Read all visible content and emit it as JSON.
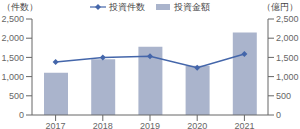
{
  "chart_data": {
    "type": "bar",
    "categories": [
      "2017",
      "2018",
      "2019",
      "2020",
      "2021"
    ],
    "series": [
      {
        "name": "投資件数",
        "type": "line",
        "color": "#4466aa",
        "marker": "diamond",
        "axis": "y2",
        "values": [
          1380,
          1500,
          1530,
          1230,
          1590
        ]
      },
      {
        "name": "投資金額",
        "type": "bar",
        "color": "#aab4cc",
        "values": [
          1100,
          1450,
          1780,
          1280,
          2150
        ]
      }
    ],
    "ylabel": "（件数）",
    "y2label": "（億円）",
    "ylim": [
      0,
      2500
    ],
    "yticks": [
      0,
      500,
      {
        "value": 1000,
        "label": "1,000"
      },
      {
        "value": 1500,
        "label": "1,500"
      },
      {
        "value": 2000,
        "label": "2,000"
      },
      {
        "value": 2500,
        "label": "2,500"
      }
    ],
    "y2lim": [
      0,
      2500
    ],
    "y2ticks": [
      0,
      500,
      {
        "value": 1000,
        "label": "1,000"
      },
      {
        "value": 1500,
        "label": "1,500"
      },
      {
        "value": 2000,
        "label": "2,000"
      },
      {
        "value": 2500,
        "label": "2,500"
      }
    ],
    "legend": "top"
  }
}
